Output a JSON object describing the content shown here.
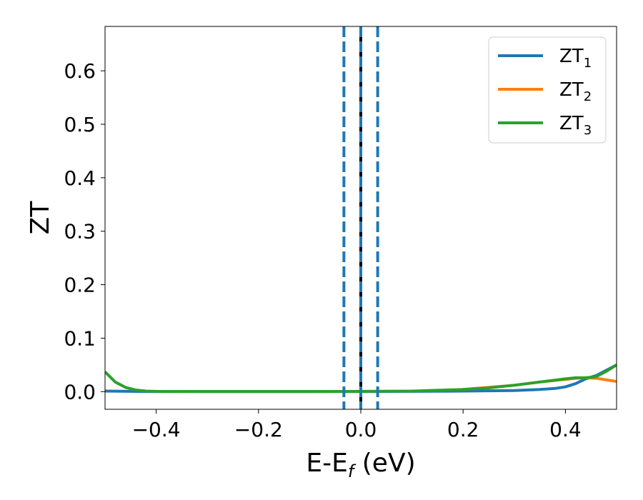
{
  "chart_data": {
    "type": "line",
    "xlabel": "E-E",
    "xlabel_sub": "f",
    "xlabel_unit": " (eV)",
    "ylabel": "ZT",
    "xlim": [
      -0.5,
      0.5
    ],
    "ylim": [
      -0.033,
      0.683
    ],
    "xticks": [
      -0.4,
      -0.2,
      0.0,
      0.2,
      0.4
    ],
    "xtick_labels": [
      "−0.4",
      "−0.2",
      "0.0",
      "0.2",
      "0.4"
    ],
    "yticks": [
      0.0,
      0.1,
      0.2,
      0.3,
      0.4,
      0.5,
      0.6
    ],
    "ytick_labels": [
      "0.0",
      "0.1",
      "0.2",
      "0.3",
      "0.4",
      "0.5",
      "0.6"
    ],
    "legend_position": "top-right",
    "grid": false,
    "vertical_lines": [
      {
        "x": -0.033,
        "style": "dashed",
        "color": "#1f77b4"
      },
      {
        "x": 0.0,
        "style": "solid",
        "color": "#000000"
      },
      {
        "x": 0.0,
        "style": "dashed",
        "color": "#1f77b4"
      },
      {
        "x": 0.033,
        "style": "dashed",
        "color": "#1f77b4"
      }
    ],
    "series": [
      {
        "name": "ZT",
        "name_sub": "1",
        "color": "#1f77b4",
        "x": [
          -0.5,
          -0.45,
          -0.4,
          -0.3,
          -0.2,
          -0.1,
          0.0,
          0.1,
          0.2,
          0.25,
          0.3,
          0.35,
          0.38,
          0.4,
          0.42,
          0.44,
          0.46,
          0.48,
          0.5
        ],
        "y": [
          0.001,
          0.0005,
          0.0003,
          0.0002,
          0.0002,
          0.0002,
          0.0003,
          0.0005,
          0.001,
          0.0015,
          0.002,
          0.004,
          0.006,
          0.009,
          0.015,
          0.024,
          0.03,
          0.04,
          0.05
        ]
      },
      {
        "name": "ZT",
        "name_sub": "2",
        "color": "#ff7f0e",
        "x": [
          0.2,
          0.3,
          0.35,
          0.4,
          0.42,
          0.44,
          0.46,
          0.48,
          0.5
        ],
        "y": [
          0.004,
          0.012,
          0.018,
          0.023,
          0.025,
          0.026,
          0.025,
          0.022,
          0.019
        ]
      },
      {
        "name": "ZT",
        "name_sub": "3",
        "color": "#2ca02c",
        "x": [
          -0.5,
          -0.48,
          -0.46,
          -0.44,
          -0.42,
          -0.4,
          -0.3,
          -0.2,
          -0.1,
          0.0,
          0.1,
          0.2,
          0.25,
          0.3,
          0.35,
          0.4,
          0.42,
          0.44,
          0.46,
          0.48,
          0.5
        ],
        "y": [
          0.037,
          0.018,
          0.008,
          0.003,
          0.001,
          0.0005,
          0.0003,
          0.0003,
          0.0003,
          0.0005,
          0.001,
          0.004,
          0.007,
          0.012,
          0.018,
          0.024,
          0.026,
          0.026,
          0.028,
          0.038,
          0.05
        ]
      }
    ]
  }
}
